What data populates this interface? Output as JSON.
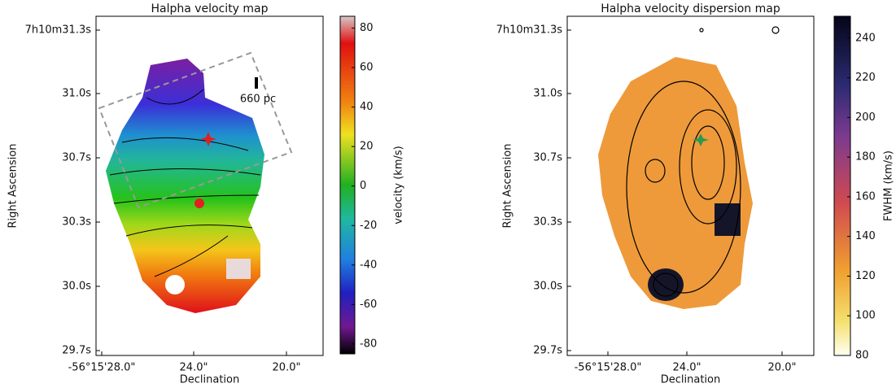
{
  "panels": [
    {
      "title": "Halpha velocity map",
      "xlabel": "Declination",
      "ylabel": "Right Ascension",
      "xtick_labels": [
        "-56°15'28.0\"",
        "24.0\"",
        "20.0\""
      ],
      "ytick_labels": [
        "7h10m31.3s",
        "31.0s",
        "30.7s",
        "30.3s",
        "30.0s",
        "29.7s"
      ],
      "annotation": "660 pc",
      "colorbar": {
        "label": "velocity (km/s)",
        "lim": [
          -85,
          86
        ],
        "ticks": [
          -80,
          -60,
          -40,
          -20,
          0,
          20,
          40,
          60,
          80
        ]
      }
    },
    {
      "title": "Halpha velocity dispersion map",
      "xlabel": "Declination",
      "ylabel": "Right Ascension",
      "xtick_labels": [
        "-56°15'28.0\"",
        "24.0\"",
        "20.0\""
      ],
      "ytick_labels": [
        "7h10m31.3s",
        "31.0s",
        "30.7s",
        "30.3s",
        "30.0s",
        "29.7s"
      ],
      "colorbar": {
        "label": "FWHM (km/s)",
        "lim": [
          80,
          251
        ],
        "ticks": [
          80,
          100,
          120,
          140,
          160,
          180,
          200,
          220,
          240
        ]
      }
    }
  ]
}
